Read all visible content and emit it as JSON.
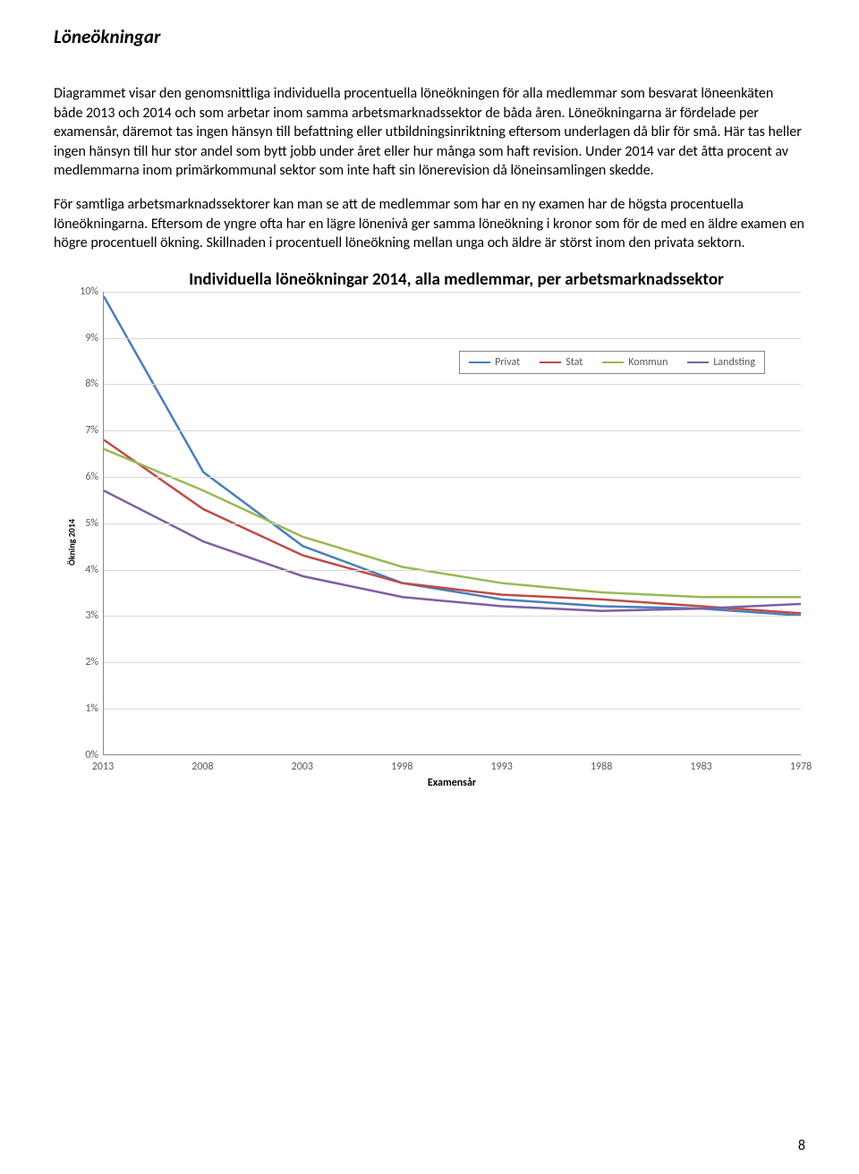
{
  "heading": "Löneökningar",
  "para1": "Diagrammet visar den genomsnittliga individuella procentuella löneökningen för alla medlemmar som besvarat löneenkäten både 2013 och 2014 och som arbetar inom samma arbetsmarknadssektor de båda åren. Löneökningarna är fördelade per examensår, däremot tas ingen hänsyn till befattning eller utbildningsinriktning eftersom underlagen då blir för små. Här tas heller ingen hänsyn till hur stor andel som bytt jobb under året eller hur många som haft revision. Under 2014 var det åtta procent av medlemmarna inom primärkommunal sektor som inte haft sin lönerevision då löneinsamlingen skedde.",
  "para2": "För samtliga arbetsmarknadssektorer kan man se att de medlemmar som har en ny examen har de högsta procentuella löneökningarna. Eftersom de yngre ofta har en lägre lönenivå ger samma löneökning i kronor som för de med en äldre examen en högre procentuell ökning. Skillnaden i procentuell löneökning mellan unga och äldre är störst inom den privata sektorn.",
  "chart": {
    "type": "line",
    "title": "Individuella löneökningar 2014, alla medlemmar, per arbetsmarknadssektor",
    "ylabel": "Ökning 2014",
    "xlabel": "Examensår",
    "x_categories": [
      "2013",
      "2008",
      "2003",
      "1998",
      "1993",
      "1988",
      "1983",
      "1978"
    ],
    "y_ticks": [
      "0%",
      "1%",
      "2%",
      "3%",
      "4%",
      "5%",
      "6%",
      "7%",
      "8%",
      "9%",
      "10%"
    ],
    "y_min": 0,
    "y_max": 10,
    "grid_color": "#d9d9d9",
    "axis_color": "#888888",
    "tick_font_color": "#595959",
    "line_width": 2.5,
    "legend_position": "top-right",
    "series": [
      {
        "name": "Privat",
        "color": "#4A7EBB",
        "values": [
          9.9,
          6.1,
          4.5,
          3.7,
          3.35,
          3.2,
          3.15,
          3.0
        ]
      },
      {
        "name": "Stat",
        "color": "#BE4B48",
        "values": [
          6.8,
          5.3,
          4.3,
          3.7,
          3.45,
          3.35,
          3.2,
          3.05
        ]
      },
      {
        "name": "Kommun",
        "color": "#98B954",
        "values": [
          6.6,
          5.7,
          4.7,
          4.05,
          3.7,
          3.5,
          3.4,
          3.4
        ]
      },
      {
        "name": "Landsting",
        "color": "#7D60A0",
        "values": [
          5.7,
          4.6,
          3.85,
          3.4,
          3.2,
          3.1,
          3.15,
          3.25
        ]
      }
    ]
  },
  "page_number": "8"
}
